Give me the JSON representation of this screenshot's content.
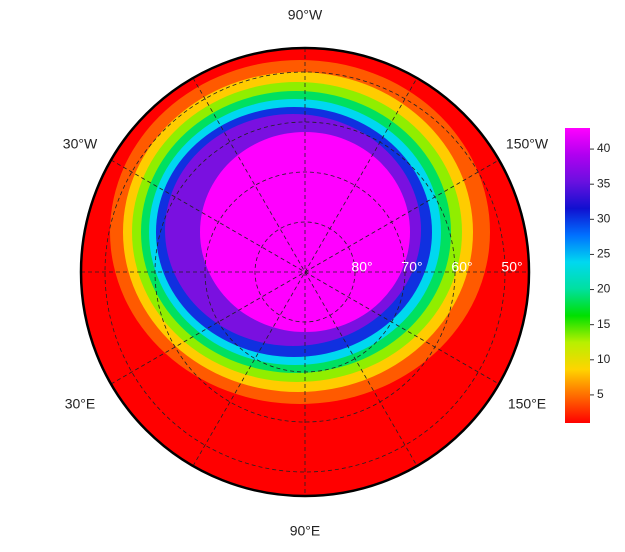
{
  "map": {
    "longitude_labels": [
      "90°W",
      "30°W",
      "150°W",
      "30°E",
      "150°E",
      "90°E"
    ],
    "latitude_labels": [
      "80°",
      "70°",
      "60°",
      "50°"
    ],
    "colorbar": {
      "lim": [
        1,
        43
      ],
      "ticks": [
        5,
        10,
        15,
        20,
        25,
        30,
        35,
        40
      ],
      "colors": [
        "#ff0000",
        "#ff6a00",
        "#ffd400",
        "#b8f000",
        "#00e000",
        "#00e0a0",
        "#00d8f0",
        "#0070ff",
        "#1010d0",
        "#6a10e0",
        "#b000f0",
        "#ff00ff"
      ]
    }
  }
}
